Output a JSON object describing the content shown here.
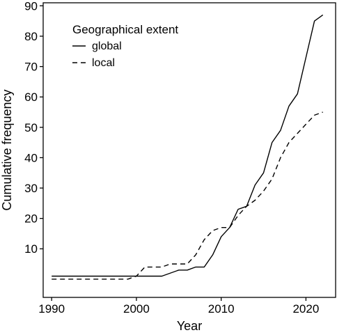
{
  "chart_data": {
    "type": "line",
    "xlabel": "Year",
    "ylabel": "Cumulative frequency",
    "xlim": [
      1989,
      2023.5
    ],
    "ylim": [
      -6,
      91
    ],
    "xticks": [
      1990,
      2000,
      2010,
      2020
    ],
    "yticks": [
      10,
      20,
      30,
      40,
      50,
      60,
      70,
      80,
      90
    ],
    "grid": false,
    "legend": {
      "title": "Geographical extent",
      "placement": "top-left"
    },
    "series": [
      {
        "name": "global",
        "dash": "solid",
        "x": [
          1990,
          2003,
          2005,
          2006,
          2007,
          2008,
          2009,
          2010,
          2011,
          2012,
          2013,
          2014,
          2015,
          2016,
          2017,
          2018,
          2019,
          2020,
          2021,
          2022
        ],
        "y": [
          1,
          1,
          3,
          3,
          4,
          4,
          8,
          14,
          17,
          23,
          24,
          31,
          35,
          45,
          49,
          57,
          61,
          73,
          85,
          87
        ]
      },
      {
        "name": "local",
        "dash": "dashed",
        "x": [
          1990,
          1999,
          2000,
          2001,
          2003,
          2004,
          2005,
          2006,
          2007,
          2008,
          2009,
          2010,
          2011,
          2012,
          2013,
          2014,
          2015,
          2016,
          2017,
          2018,
          2019,
          2020,
          2021,
          2022
        ],
        "y": [
          0,
          0,
          1,
          4,
          4,
          5,
          5,
          5,
          8,
          13,
          16,
          17,
          17,
          21,
          24,
          26,
          29,
          33,
          40,
          45,
          48,
          51,
          54,
          55
        ]
      }
    ]
  }
}
